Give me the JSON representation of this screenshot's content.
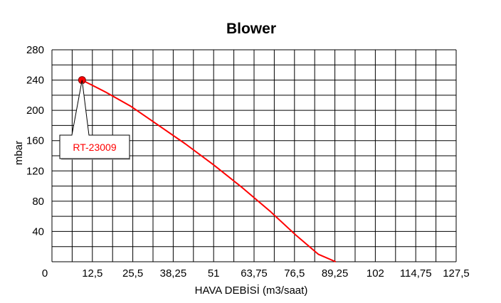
{
  "chart_data": {
    "type": "line",
    "title": "Blower",
    "xlabel": "HAVA DEBİSİ (m3/saat)",
    "ylabel": "mbar",
    "x_ticks": [
      "0",
      "12,5",
      "25,5",
      "38,25",
      "51",
      "63,75",
      "76,5",
      "89,25",
      "102",
      "114,75",
      "127,5"
    ],
    "y_ticks": [
      "40",
      "80",
      "120",
      "160",
      "200",
      "240",
      "280"
    ],
    "xlim": [
      0,
      127.5
    ],
    "ylim": [
      0,
      280
    ],
    "grid": true,
    "series": [
      {
        "name": "RT-23009",
        "color": "#ff0000",
        "x": [
          9.5,
          17,
          25,
          33,
          42,
          51,
          60,
          69,
          77,
          84,
          89.5
        ],
        "y": [
          240,
          224,
          205,
          182,
          156,
          128,
          98,
          66,
          35,
          10,
          0
        ]
      }
    ],
    "annotation": {
      "text": "RT-23009",
      "color": "#ff0000",
      "x": 9.5,
      "y": 240
    }
  }
}
